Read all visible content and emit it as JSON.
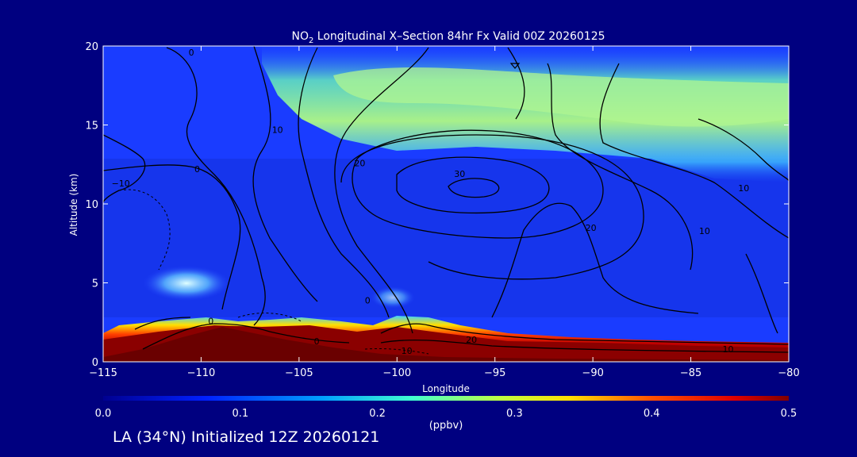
{
  "chart_data": {
    "type": "heatmap",
    "title_prefix": "NO",
    "title_sub": "2",
    "title_rest": " Longitudinal X–Section 84hr  Fx Valid 00Z 20260125",
    "xlabel": "Longitude",
    "ylabel": "Altitude (km)",
    "xlim": [
      -115,
      -80
    ],
    "ylim": [
      0,
      20
    ],
    "x_ticks": [
      "−115",
      "−110",
      "−105",
      "−100",
      "−95",
      "−90",
      "−85",
      "−80"
    ],
    "x_tick_values": [
      -115,
      -110,
      -105,
      -100,
      -95,
      -90,
      -85,
      -80
    ],
    "y_ticks": [
      "0",
      "5",
      "10",
      "15",
      "20"
    ],
    "y_tick_values": [
      0,
      5,
      10,
      15,
      20
    ],
    "colorbar": {
      "min": 0.0,
      "max": 0.5,
      "unit": "(ppbv)",
      "tick_labels": [
        "0.0",
        "0.1",
        "0.2",
        "0.3",
        "0.4",
        "0.5"
      ],
      "tick_values": [
        0.0,
        0.1,
        0.2,
        0.3,
        0.4,
        0.5
      ]
    },
    "contour_labels": [
      {
        "text": "0",
        "lon": -110.5,
        "alt": 19.6
      },
      {
        "text": "10",
        "lon": -106.1,
        "alt": 14.7
      },
      {
        "text": "0",
        "lon": -110.2,
        "alt": 12.2
      },
      {
        "text": "−10",
        "lon": -114.1,
        "alt": 11.3
      },
      {
        "text": "20",
        "lon": -101.9,
        "alt": 12.6
      },
      {
        "text": "30",
        "lon": -96.8,
        "alt": 11.9
      },
      {
        "text": "20",
        "lon": -90.1,
        "alt": 8.5
      },
      {
        "text": "10",
        "lon": -84.3,
        "alt": 8.3
      },
      {
        "text": "10",
        "lon": -82.3,
        "alt": 11.0
      },
      {
        "text": "0",
        "lon": -101.5,
        "alt": 3.9
      },
      {
        "text": "0",
        "lon": -109.5,
        "alt": 2.6
      },
      {
        "text": "0",
        "lon": -104.1,
        "alt": 1.3
      },
      {
        "text": "20",
        "lon": -96.2,
        "alt": 1.4
      },
      {
        "text": "10",
        "lon": -99.5,
        "alt": 0.7
      },
      {
        "text": "10",
        "lon": -83.1,
        "alt": 0.8
      }
    ],
    "colors": {
      "background": "#000080",
      "field_low": "#1a3cff",
      "field_stratosphere": "#a8f08a",
      "field_boundary": "#8b0000",
      "contour": "#000000",
      "terrain": "#8b0000"
    }
  },
  "footer": {
    "text": "LA (34°N) Initialized 12Z 20260121"
  }
}
